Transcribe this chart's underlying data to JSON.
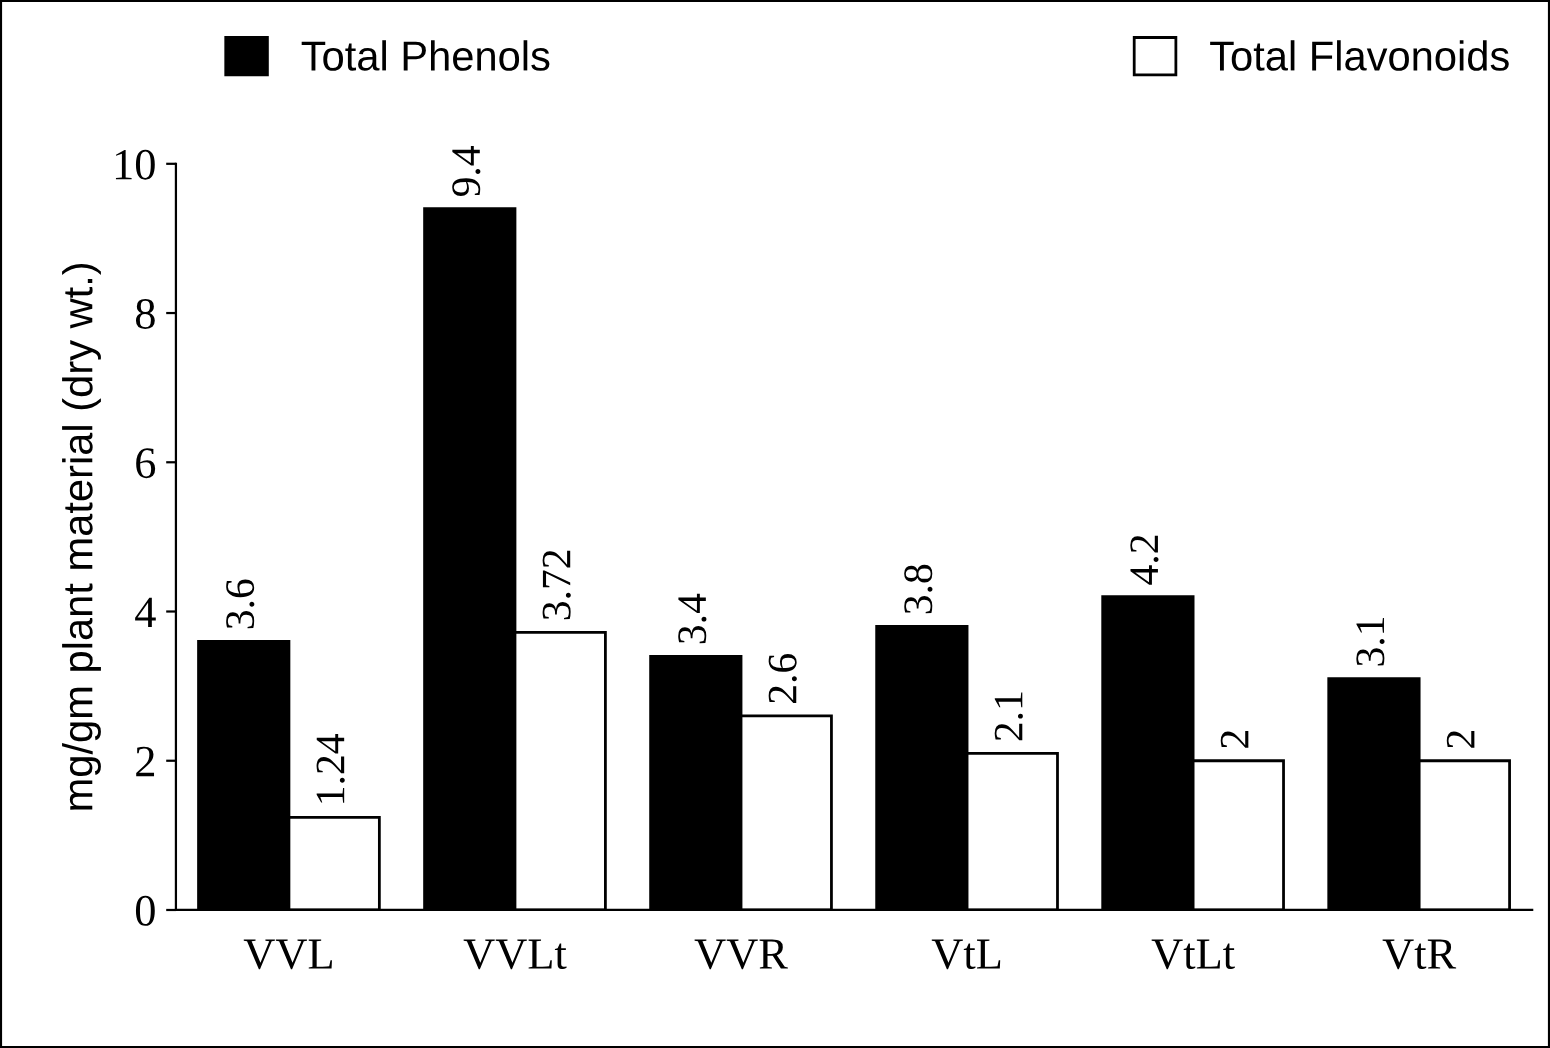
{
  "chart_data": {
    "type": "bar",
    "ylabel": "mg/gm plant material (dry wt.)",
    "categories": [
      "VVL",
      "VVLt",
      "VVR",
      "VtL",
      "VtLt",
      "VtR"
    ],
    "series": [
      {
        "name": "Total Phenols",
        "color": "#000000",
        "values": [
          3.6,
          9.4,
          3.4,
          3.8,
          4.2,
          3.1
        ]
      },
      {
        "name": "Total Flavonoids",
        "color": "#ffffff",
        "values": [
          1.24,
          3.72,
          2.6,
          2.1,
          2,
          2
        ]
      }
    ],
    "ylim": [
      0,
      10
    ],
    "yticks": [
      0,
      2,
      4,
      6,
      8,
      10
    ],
    "data_labels": true,
    "legend": "top",
    "grid": false
  }
}
